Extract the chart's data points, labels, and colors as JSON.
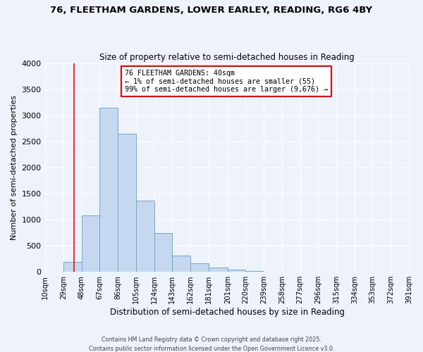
{
  "title": "76, FLEETHAM GARDENS, LOWER EARLEY, READING, RG6 4BY",
  "subtitle": "Size of property relative to semi-detached houses in Reading",
  "xlabel": "Distribution of semi-detached houses by size in Reading",
  "ylabel": "Number of semi-detached properties",
  "bar_values": [
    5,
    185,
    1080,
    3150,
    2640,
    1360,
    750,
    310,
    165,
    80,
    50,
    15,
    5,
    2,
    0,
    0,
    0,
    0,
    0,
    0
  ],
  "bin_labels": [
    "10sqm",
    "29sqm",
    "48sqm",
    "67sqm",
    "86sqm",
    "105sqm",
    "124sqm",
    "143sqm",
    "162sqm",
    "181sqm",
    "201sqm",
    "220sqm",
    "239sqm",
    "258sqm",
    "277sqm",
    "296sqm",
    "315sqm",
    "334sqm",
    "353sqm",
    "372sqm",
    "391sqm"
  ],
  "ylim": [
    0,
    4000
  ],
  "yticks": [
    0,
    500,
    1000,
    1500,
    2000,
    2500,
    3000,
    3500,
    4000
  ],
  "bar_color": "#c5d8f0",
  "bar_edge_color": "#6aaad4",
  "vline_x": 40,
  "vline_color": "red",
  "annotation_title": "76 FLEETHAM GARDENS: 40sqm",
  "annotation_line1": "← 1% of semi-detached houses are smaller (55)",
  "annotation_line2": "99% of semi-detached houses are larger (9,676) →",
  "annotation_box_color": "white",
  "annotation_box_edge_color": "red",
  "footer1": "Contains HM Land Registry data © Crown copyright and database right 2025.",
  "footer2": "Contains public sector information licensed under the Open Government Licence v3.0.",
  "bg_color": "#eef2fa"
}
